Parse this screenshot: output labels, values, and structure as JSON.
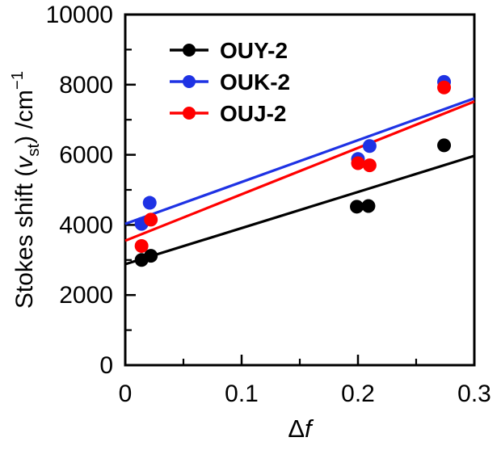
{
  "chart_data": {
    "type": "scatter",
    "title": "",
    "xlabel_parts": [
      {
        "t": "Δ",
        "style": "normal"
      },
      {
        "t": "f",
        "style": "italic"
      }
    ],
    "ylabel_parts": [
      {
        "t": "Stokes shift (",
        "style": "normal"
      },
      {
        "t": "v",
        "style": "italic"
      },
      {
        "t": "st",
        "style": "sub"
      },
      {
        "t": ") /cm",
        "style": "normal"
      },
      {
        "t": "−1",
        "style": "sup"
      }
    ],
    "xlim": [
      0,
      0.3
    ],
    "ylim": [
      0,
      10000
    ],
    "x_major_ticks": [
      0,
      0.1,
      0.2,
      0.3
    ],
    "x_tick_labels": [
      "0",
      "0.1",
      "0.2",
      "0.3"
    ],
    "x_minor_ticks": [
      0.05,
      0.15,
      0.25
    ],
    "y_major_ticks": [
      0,
      2000,
      4000,
      6000,
      8000,
      10000
    ],
    "y_tick_labels": [
      "0",
      "2000",
      "4000",
      "6000",
      "8000",
      "10000"
    ],
    "y_minor_ticks": [
      1000,
      3000,
      5000,
      7000,
      9000
    ],
    "grid": "off",
    "legend_position": "top-left-inside",
    "frame_color": "#000000",
    "series": [
      {
        "name": "OUY-2",
        "color": "#000000",
        "points": [
          [
            0.014,
            3000
          ],
          [
            0.022,
            3120
          ],
          [
            0.199,
            4520
          ],
          [
            0.209,
            4540
          ],
          [
            0.274,
            6270
          ]
        ],
        "fit_line": {
          "x": [
            0,
            0.3
          ],
          "y": [
            2880,
            5970
          ]
        }
      },
      {
        "name": "OUK-2",
        "color": "#1e32e4",
        "points": [
          [
            0.014,
            4030
          ],
          [
            0.021,
            4630
          ],
          [
            0.2,
            5880
          ],
          [
            0.21,
            6250
          ],
          [
            0.274,
            8080
          ]
        ],
        "fit_line": {
          "x": [
            0,
            0.3
          ],
          "y": [
            4030,
            7610
          ]
        }
      },
      {
        "name": "OUJ-2",
        "color": "#ff0000",
        "points": [
          [
            0.014,
            3400
          ],
          [
            0.022,
            4150
          ],
          [
            0.2,
            5760
          ],
          [
            0.21,
            5700
          ],
          [
            0.274,
            7920
          ]
        ],
        "fit_line": {
          "x": [
            0,
            0.3
          ],
          "y": [
            3550,
            7520
          ]
        }
      }
    ]
  }
}
